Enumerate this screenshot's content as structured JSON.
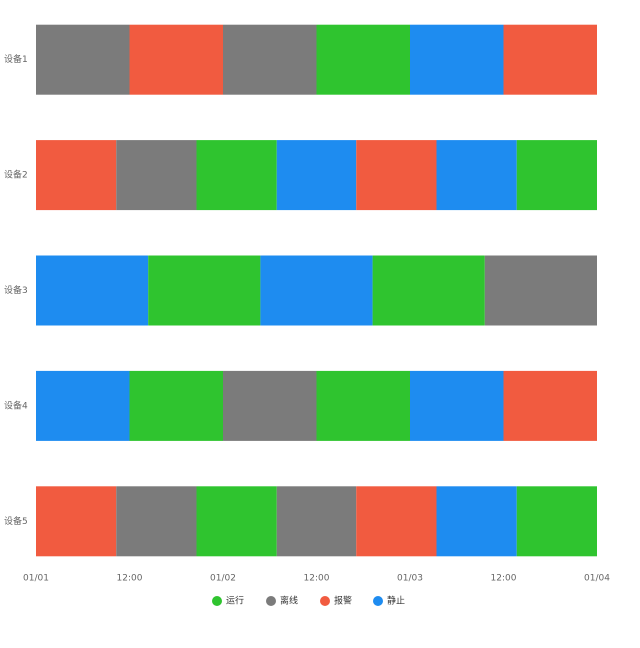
{
  "chart_data": {
    "type": "timeline",
    "categories": [
      "设备1",
      "设备2",
      "设备3",
      "设备4",
      "设备5"
    ],
    "series": [
      {
        "name": "运行",
        "color": "#2fc42f"
      },
      {
        "name": "离线",
        "color": "#7b7b7b"
      },
      {
        "name": "报警",
        "color": "#f15b40"
      },
      {
        "name": "静止",
        "color": "#1e8cf0"
      }
    ],
    "segments": [
      [
        {
          "start": 0,
          "end": 12,
          "state": "离线"
        },
        {
          "start": 12,
          "end": 24,
          "state": "报警"
        },
        {
          "start": 24,
          "end": 36,
          "state": "离线"
        },
        {
          "start": 36,
          "end": 48,
          "state": "运行"
        },
        {
          "start": 48,
          "end": 60,
          "state": "静止"
        },
        {
          "start": 60,
          "end": 72,
          "state": "报警"
        }
      ],
      [
        {
          "start": 0,
          "end": 10.3,
          "state": "报警"
        },
        {
          "start": 10.3,
          "end": 20.6,
          "state": "离线"
        },
        {
          "start": 20.6,
          "end": 30.9,
          "state": "运行"
        },
        {
          "start": 30.9,
          "end": 41.1,
          "state": "静止"
        },
        {
          "start": 41.1,
          "end": 51.4,
          "state": "报警"
        },
        {
          "start": 51.4,
          "end": 61.7,
          "state": "静止"
        },
        {
          "start": 61.7,
          "end": 72,
          "state": "运行"
        }
      ],
      [
        {
          "start": 0,
          "end": 14.4,
          "state": "静止"
        },
        {
          "start": 14.4,
          "end": 28.8,
          "state": "运行"
        },
        {
          "start": 28.8,
          "end": 43.2,
          "state": "静止"
        },
        {
          "start": 43.2,
          "end": 57.6,
          "state": "运行"
        },
        {
          "start": 57.6,
          "end": 72,
          "state": "离线"
        }
      ],
      [
        {
          "start": 0,
          "end": 12,
          "state": "静止"
        },
        {
          "start": 12,
          "end": 24,
          "state": "运行"
        },
        {
          "start": 24,
          "end": 36,
          "state": "离线"
        },
        {
          "start": 36,
          "end": 48,
          "state": "运行"
        },
        {
          "start": 48,
          "end": 60,
          "state": "静止"
        },
        {
          "start": 60,
          "end": 72,
          "state": "报警"
        }
      ],
      [
        {
          "start": 0,
          "end": 10.3,
          "state": "报警"
        },
        {
          "start": 10.3,
          "end": 20.6,
          "state": "离线"
        },
        {
          "start": 20.6,
          "end": 30.9,
          "state": "运行"
        },
        {
          "start": 30.9,
          "end": 41.1,
          "state": "离线"
        },
        {
          "start": 41.1,
          "end": 51.4,
          "state": "报警"
        },
        {
          "start": 51.4,
          "end": 61.7,
          "state": "静止"
        },
        {
          "start": 61.7,
          "end": 72,
          "state": "运行"
        }
      ]
    ],
    "xlim": [
      0,
      72
    ],
    "xticks": [
      {
        "value": 0,
        "label": "01/01"
      },
      {
        "value": 12,
        "label": "12:00"
      },
      {
        "value": 24,
        "label": "01/02"
      },
      {
        "value": 36,
        "label": "12:00"
      },
      {
        "value": 48,
        "label": "01/03"
      },
      {
        "value": 60,
        "label": "12:00"
      },
      {
        "value": 72,
        "label": "01/04"
      }
    ]
  }
}
